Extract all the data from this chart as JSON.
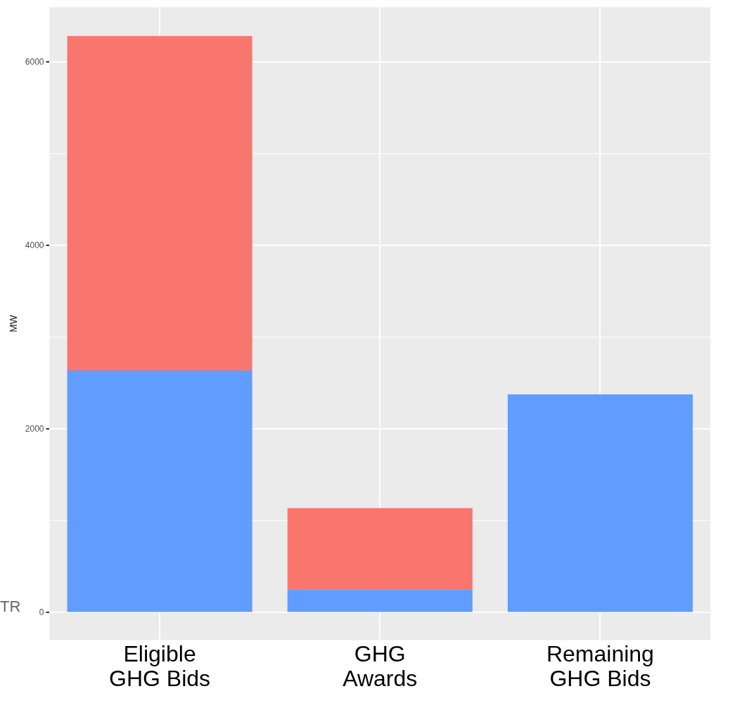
{
  "chart_data": {
    "type": "bar",
    "ylabel": "MW",
    "categories": [
      "Eligible\nGHG Bids",
      "GHG\nAwards",
      "Remaining\nGHG Bids"
    ],
    "stacked": true,
    "series": [
      {
        "color": "#619cff",
        "values": [
          2640,
          255,
          2380
        ]
      },
      {
        "color": "#f8766d",
        "values": [
          3645,
          885,
          null
        ]
      }
    ],
    "ylim": [
      -300,
      6600
    ],
    "yticks": [
      0,
      {
        "value": 1000,
        "label": null
      },
      2000,
      {
        "value": 3000,
        "label": null
      },
      4000,
      {
        "value": 5000,
        "label": null
      },
      6000
    ],
    "grid": true,
    "annotations": [
      "TR"
    ]
  }
}
